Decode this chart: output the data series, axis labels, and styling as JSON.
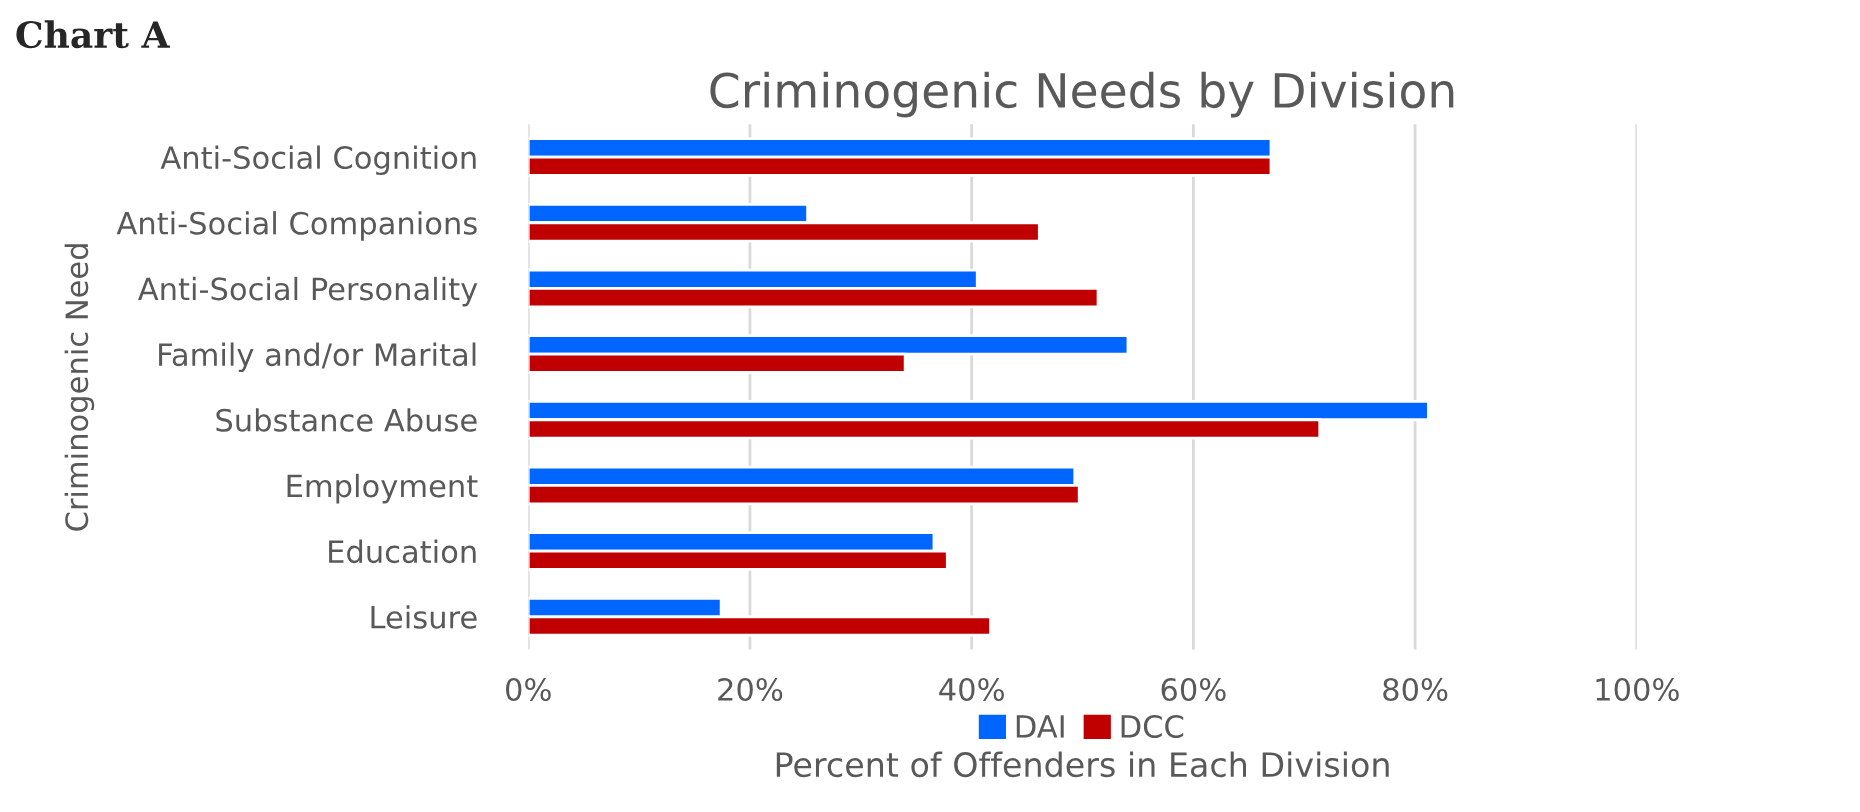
{
  "chart_data": {
    "type": "bar",
    "orientation": "horizontal",
    "title": "Criminogenic Needs by Division",
    "annotations": [
      "Chart A"
    ],
    "xlabel": "Percent of Offenders in Each Division",
    "ylabel": "Criminogenic Need",
    "categories": [
      "Anti-Social Cognition",
      "Anti-Social Companions",
      "Anti-Social Personality",
      "Family and/or Marital",
      "Substance Abuse",
      "Employment",
      "Education",
      "Leisure"
    ],
    "series": [
      {
        "name": "DAI",
        "color": "#0066ff",
        "values": [
          67.0,
          25.2,
          40.5,
          54.1,
          81.2,
          49.3,
          36.6,
          17.4
        ]
      },
      {
        "name": "DCC",
        "color": "#c00000",
        "values": [
          67.0,
          46.1,
          51.4,
          34.0,
          71.4,
          49.7,
          37.8,
          41.7
        ]
      }
    ],
    "xlim": [
      0,
      100
    ],
    "xticks": [
      {
        "value": 0,
        "label": "0%"
      },
      {
        "value": 20,
        "label": "20%"
      },
      {
        "value": 40,
        "label": "40%"
      },
      {
        "value": 60,
        "label": "60%"
      },
      {
        "value": 80,
        "label": "80%"
      },
      {
        "value": 100,
        "label": "100%"
      }
    ],
    "grid": "x",
    "legend": "bottom"
  }
}
